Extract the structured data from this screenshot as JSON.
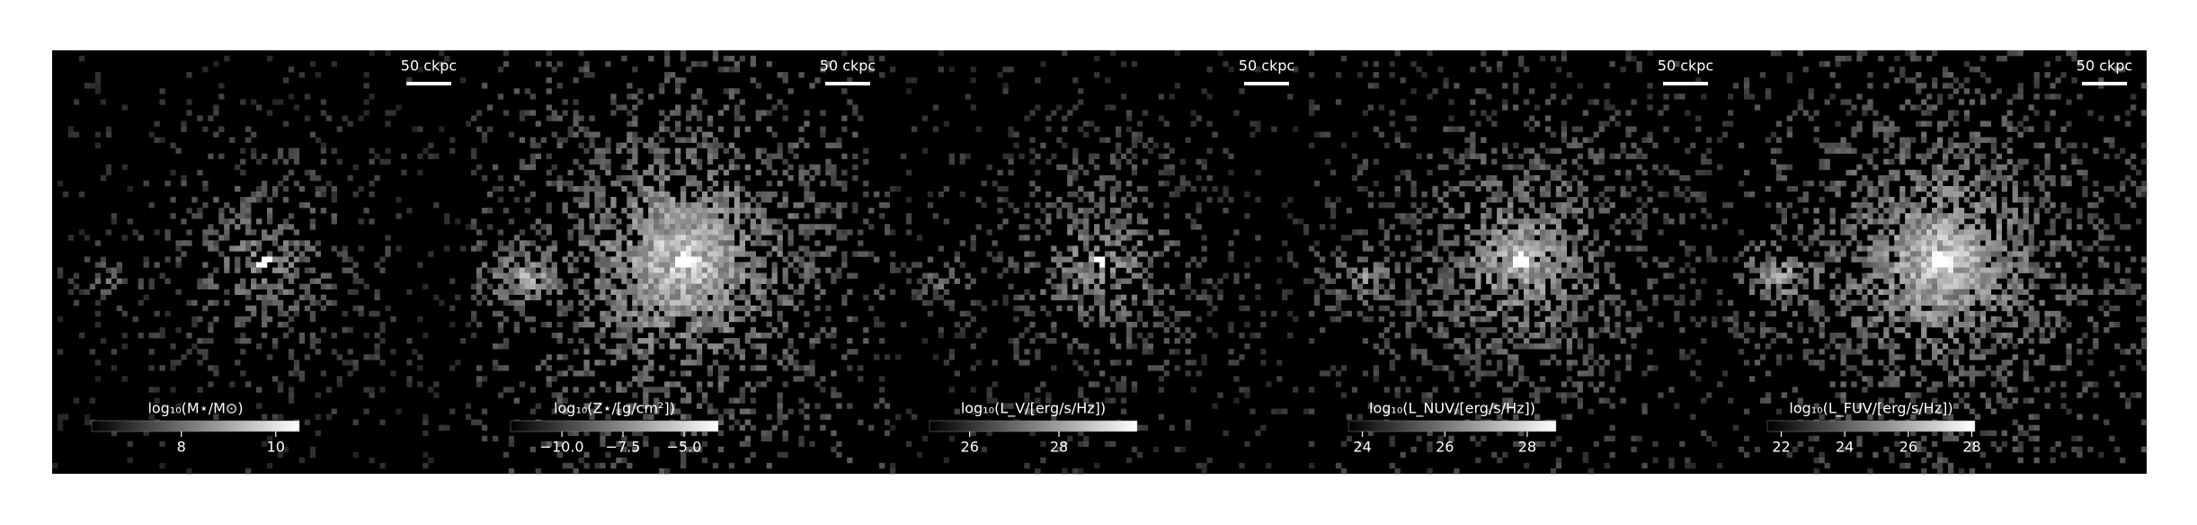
{
  "chart_data": [
    {
      "type": "image",
      "scale_bar": "50 ckpc",
      "colorbar": {
        "label": "log₁₀(M⋆/M⊙)",
        "lim": [
          6.1,
          10.5
        ],
        "ticks": [
          8,
          10
        ]
      }
    },
    {
      "type": "image",
      "scale_bar": "50 ckpc",
      "colorbar": {
        "label": "log₁₀(Z⋆/[g/cm²])",
        "lim": [
          -12.1,
          -3.6
        ],
        "ticks": [
          {
            "value": -10,
            "label": "−10.0"
          },
          {
            "value": -7.5,
            "label": "−7.5"
          },
          {
            "value": -5,
            "label": "−5.0"
          }
        ]
      }
    },
    {
      "type": "image",
      "scale_bar": "50 ckpc",
      "colorbar": {
        "label": "log₁₀(L_V/[erg/s/Hz])",
        "lim": [
          25.1,
          29.75
        ],
        "ticks": [
          26,
          28
        ]
      }
    },
    {
      "type": "image",
      "scale_bar": "50 ckpc",
      "colorbar": {
        "label": "log₁₀(L_NUV/[erg/s/Hz])",
        "lim": [
          23.66,
          28.7
        ],
        "ticks": [
          24,
          26,
          28
        ]
      }
    },
    {
      "type": "image",
      "scale_bar": "50 ckpc",
      "colorbar": {
        "label": "log₁₀(L_FUV/[erg/s/Hz])",
        "lim": [
          21.56,
          28.1
        ],
        "ticks": [
          22,
          24,
          26,
          28
        ]
      }
    }
  ]
}
